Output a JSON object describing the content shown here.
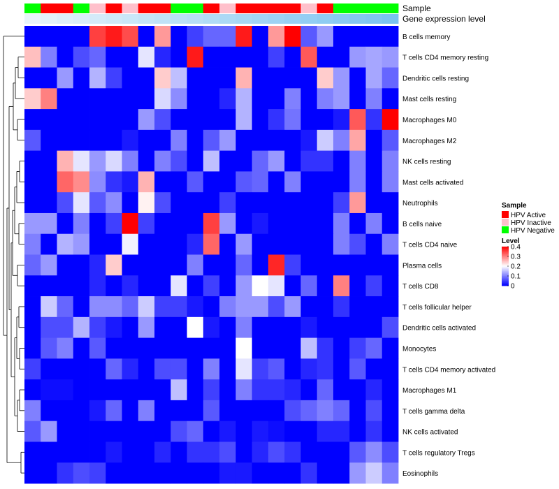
{
  "chart_data": {
    "type": "heatmap",
    "annotation_rows": [
      "Sample",
      "Gene expression level"
    ],
    "rows": [
      "B cells memory",
      "T cells CD4 memory resting",
      "Dendritic cells resting",
      "Mast cells resting",
      "Macrophages M0",
      "Macrophages M2",
      "NK cells resting",
      "Mast cells activated",
      "Neutrophils",
      "B cells naive",
      "T cells CD4 naive",
      "Plasma cells",
      "T cells CD8",
      "T cells follicular helper",
      "Dendritic cells activated",
      "Monocytes",
      "T cells CD4 memory activated",
      "Macrophages M1",
      "T cells gamma delta",
      "NK cells activated",
      "T cells regulatory  Tregs",
      "Eosinophils"
    ],
    "sample_groups": [
      "HPV Negative",
      "HPV Active",
      "HPV Active",
      "HPV Negative",
      "HPV Inactive",
      "HPV Active",
      "HPV Inactive",
      "HPV Active",
      "HPV Active",
      "HPV Negative",
      "HPV Negative",
      "HPV Active",
      "HPV Inactive",
      "HPV Active",
      "HPV Active",
      "HPV Active",
      "HPV Active",
      "HPV Inactive",
      "HPV Active",
      "HPV Negative",
      "HPV Negative",
      "HPV Negative",
      "HPV Negative"
    ],
    "gene_expression_level": [
      0.0,
      0.05,
      0.1,
      0.14,
      0.18,
      0.23,
      0.27,
      0.32,
      0.36,
      0.41,
      0.45,
      0.5,
      0.55,
      0.59,
      0.64,
      0.68,
      0.73,
      0.77,
      0.82,
      0.86,
      0.91,
      0.95,
      1.0
    ],
    "values": [
      [
        0.0,
        0.0,
        0.0,
        0.0,
        0.35,
        0.38,
        0.34,
        0.0,
        0.28,
        0.0,
        0.05,
        0.08,
        0.08,
        0.38,
        0.0,
        0.28,
        0.4,
        0.07,
        0.12,
        0.0,
        0.0,
        0.0,
        0.0
      ],
      [
        0.25,
        0.1,
        0.0,
        0.06,
        0.08,
        0.0,
        0.0,
        0.18,
        0.03,
        0.0,
        0.38,
        0.0,
        0.0,
        0.0,
        0.0,
        0.05,
        0.0,
        0.33,
        0.0,
        0.0,
        0.12,
        0.13,
        0.12
      ],
      [
        0.0,
        0.0,
        0.12,
        0.0,
        0.14,
        0.05,
        0.0,
        0.0,
        0.24,
        0.15,
        0.0,
        0.0,
        0.0,
        0.26,
        0.0,
        0.0,
        0.0,
        0.0,
        0.24,
        0.12,
        0.0,
        0.13,
        0.08
      ],
      [
        0.24,
        0.3,
        0.0,
        0.0,
        0.0,
        0.0,
        0.0,
        0.0,
        0.17,
        0.11,
        0.0,
        0.0,
        0.03,
        0.14,
        0.0,
        0.0,
        0.1,
        0.0,
        0.1,
        0.12,
        0.0,
        0.1,
        0.0
      ],
      [
        0.0,
        0.0,
        0.0,
        0.0,
        0.0,
        0.0,
        0.0,
        0.12,
        0.06,
        0.0,
        0.0,
        0.0,
        0.0,
        0.14,
        0.0,
        0.04,
        0.09,
        0.0,
        0.0,
        0.02,
        0.33,
        0.04,
        0.4
      ],
      [
        0.07,
        0.0,
        0.0,
        0.0,
        0.0,
        0.0,
        0.02,
        0.0,
        0.0,
        0.1,
        0.0,
        0.07,
        0.12,
        0.0,
        0.0,
        0.0,
        0.0,
        0.02,
        0.16,
        0.1,
        0.27,
        0.0,
        0.07
      ],
      [
        0.0,
        0.0,
        0.26,
        0.18,
        0.12,
        0.17,
        0.1,
        0.0,
        0.1,
        0.06,
        0.0,
        0.15,
        0.0,
        0.0,
        0.08,
        0.12,
        0.0,
        0.04,
        0.04,
        0.0,
        0.1,
        0.0,
        0.1
      ],
      [
        0.0,
        0.0,
        0.32,
        0.29,
        0.11,
        0.04,
        0.02,
        0.26,
        0.0,
        0.0,
        0.07,
        0.0,
        0.0,
        0.07,
        0.08,
        0.0,
        0.1,
        0.0,
        0.0,
        0.0,
        0.1,
        0.0,
        0.1
      ],
      [
        0.0,
        0.0,
        0.06,
        0.18,
        0.07,
        0.11,
        0.0,
        0.21,
        0.06,
        0.0,
        0.0,
        0.0,
        0.05,
        0.0,
        0.0,
        0.0,
        0.0,
        0.0,
        0.0,
        0.05,
        0.28,
        0.0,
        0.0
      ],
      [
        0.12,
        0.12,
        0.0,
        0.1,
        0.0,
        0.05,
        0.4,
        0.05,
        0.0,
        0.0,
        0.0,
        0.35,
        0.12,
        0.0,
        0.02,
        0.0,
        0.0,
        0.0,
        0.0,
        0.1,
        0.0,
        0.1,
        0.0
      ],
      [
        0.1,
        0.0,
        0.14,
        0.12,
        0.0,
        0.0,
        0.19,
        0.0,
        0.0,
        0.0,
        0.03,
        0.32,
        0.0,
        0.12,
        0.0,
        0.0,
        0.0,
        0.0,
        0.0,
        0.1,
        0.06,
        0.0,
        0.1
      ],
      [
        0.08,
        0.12,
        0.0,
        0.0,
        0.03,
        0.24,
        0.0,
        0.0,
        0.0,
        0.0,
        0.1,
        0.0,
        0.0,
        0.08,
        0.0,
        0.37,
        0.05,
        0.0,
        0.0,
        0.0,
        0.0,
        0.0,
        0.0
      ],
      [
        0.0,
        0.0,
        0.0,
        0.0,
        0.03,
        0.0,
        0.03,
        0.0,
        0.0,
        0.18,
        0.0,
        0.05,
        0.0,
        0.12,
        0.2,
        0.18,
        0.0,
        0.08,
        0.0,
        0.3,
        0.0,
        0.05,
        0.0
      ],
      [
        0.0,
        0.16,
        0.08,
        0.0,
        0.11,
        0.11,
        0.08,
        0.16,
        0.05,
        0.05,
        0.02,
        0.0,
        0.1,
        0.12,
        0.12,
        0.06,
        0.12,
        0.0,
        0.0,
        0.04,
        0.0,
        0.0,
        0.0
      ],
      [
        0.0,
        0.06,
        0.06,
        0.14,
        0.05,
        0.02,
        0.0,
        0.12,
        0.0,
        0.0,
        0.2,
        0.02,
        0.0,
        0.1,
        0.0,
        0.0,
        0.0,
        0.02,
        0.0,
        0.0,
        0.0,
        0.0,
        0.06
      ],
      [
        0.0,
        0.07,
        0.1,
        0.0,
        0.07,
        0.0,
        0.0,
        0.0,
        0.0,
        0.0,
        0.0,
        0.0,
        0.0,
        0.2,
        0.0,
        0.0,
        0.0,
        0.15,
        0.04,
        0.0,
        0.05,
        0.08,
        0.0
      ],
      [
        0.05,
        0.0,
        0.0,
        0.0,
        0.0,
        0.08,
        0.03,
        0.0,
        0.06,
        0.06,
        0.0,
        0.1,
        0.0,
        0.18,
        0.05,
        0.07,
        0.0,
        0.03,
        0.04,
        0.0,
        0.07,
        0.0,
        0.0
      ],
      [
        0.0,
        0.01,
        0.01,
        0.0,
        0.0,
        0.0,
        0.0,
        0.0,
        0.0,
        0.15,
        0.0,
        0.05,
        0.0,
        0.1,
        0.04,
        0.04,
        0.03,
        0.0,
        0.08,
        0.0,
        0.0,
        0.03,
        0.0
      ],
      [
        0.1,
        0.0,
        0.0,
        0.0,
        0.02,
        0.08,
        0.0,
        0.1,
        0.0,
        0.0,
        0.0,
        0.07,
        0.0,
        0.0,
        0.0,
        0.0,
        0.06,
        0.08,
        0.1,
        0.08,
        0.0,
        0.06,
        0.0
      ],
      [
        0.07,
        0.12,
        0.0,
        0.0,
        0.0,
        0.0,
        0.0,
        0.0,
        0.0,
        0.06,
        0.08,
        0.0,
        0.02,
        0.0,
        0.02,
        0.01,
        0.0,
        0.0,
        0.03,
        0.03,
        0.0,
        0.04,
        0.0
      ],
      [
        0.0,
        0.0,
        0.0,
        0.0,
        0.0,
        0.02,
        0.0,
        0.0,
        0.03,
        0.0,
        0.04,
        0.04,
        0.06,
        0.0,
        0.03,
        0.06,
        0.04,
        0.0,
        0.0,
        0.0,
        0.07,
        0.11,
        0.06
      ],
      [
        0.0,
        0.0,
        0.04,
        0.06,
        0.05,
        0.0,
        0.0,
        0.0,
        0.0,
        0.0,
        0.0,
        0.0,
        0.02,
        0.02,
        0.0,
        0.0,
        0.0,
        0.04,
        0.0,
        0.0,
        0.12,
        0.16,
        0.1
      ]
    ],
    "legend_sample": {
      "title": "Sample",
      "entries": [
        {
          "label": "HPV Active",
          "color": "#ff0000"
        },
        {
          "label": "HPV Inactive",
          "color": "#ffc0cb"
        },
        {
          "label": "HPV Negative",
          "color": "#00ff00"
        }
      ]
    },
    "legend_level": {
      "title": "Level",
      "ticks": [
        0.4,
        0.3,
        0.2,
        0.1,
        0
      ],
      "tick_labels": [
        "0.4",
        "0.3",
        "0.2",
        "0.1",
        "0"
      ],
      "range": [
        0,
        0.4
      ],
      "colors": {
        "low": "#0000ff",
        "mid": "#ffffff",
        "high": "#ff0000"
      }
    },
    "annotation_colors": {
      "light": "#e8f4fb",
      "dark": "#7ac3f0"
    },
    "dendrogram": "rows"
  }
}
